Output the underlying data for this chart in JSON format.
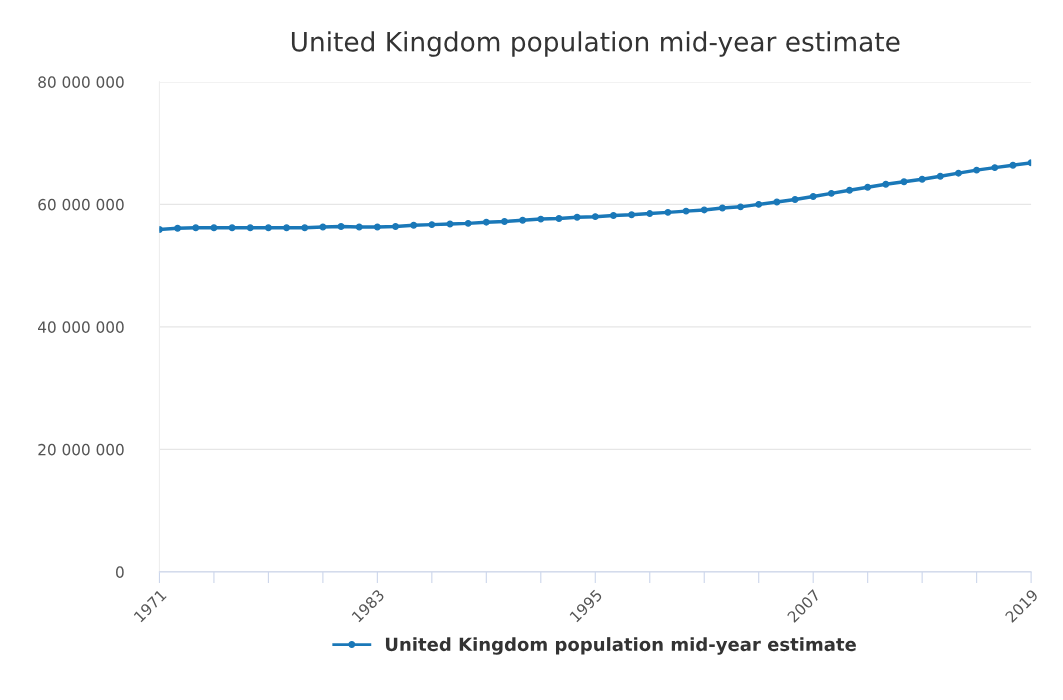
{
  "chart_data": {
    "type": "line",
    "title": "United Kingdom population mid-year estimate",
    "x": [
      1971,
      1972,
      1973,
      1974,
      1975,
      1976,
      1977,
      1978,
      1979,
      1980,
      1981,
      1982,
      1983,
      1984,
      1985,
      1986,
      1987,
      1988,
      1989,
      1990,
      1991,
      1992,
      1993,
      1994,
      1995,
      1996,
      1997,
      1998,
      1999,
      2000,
      2001,
      2002,
      2003,
      2004,
      2005,
      2006,
      2007,
      2008,
      2009,
      2010,
      2011,
      2012,
      2013,
      2014,
      2015,
      2016,
      2017,
      2018,
      2019
    ],
    "series": [
      {
        "name": "United Kingdom population mid-year estimate",
        "color": "#1a78b8",
        "values": [
          55900000,
          56100000,
          56200000,
          56200000,
          56200000,
          56200000,
          56200000,
          56200000,
          56200000,
          56300000,
          56400000,
          56300000,
          56300000,
          56400000,
          56600000,
          56700000,
          56800000,
          56900000,
          57100000,
          57200000,
          57400000,
          57600000,
          57700000,
          57900000,
          58000000,
          58200000,
          58300000,
          58500000,
          58700000,
          58900000,
          59100000,
          59400000,
          59600000,
          60000000,
          60400000,
          60800000,
          61300000,
          61800000,
          62300000,
          62800000,
          63300000,
          63700000,
          64100000,
          64600000,
          65100000,
          65600000,
          66000000,
          66400000,
          66800000
        ]
      }
    ],
    "xlim": [
      1971,
      2019
    ],
    "xticks": [
      1971,
      {
        "value": 1974,
        "label": null
      },
      {
        "value": 1977,
        "label": null
      },
      {
        "value": 1980,
        "label": null
      },
      1983,
      {
        "value": 1986,
        "label": null
      },
      {
        "value": 1989,
        "label": null
      },
      {
        "value": 1992,
        "label": null
      },
      1995,
      {
        "value": 1998,
        "label": null
      },
      {
        "value": 2001,
        "label": null
      },
      {
        "value": 2004,
        "label": null
      },
      2007,
      {
        "value": 2010,
        "label": null
      },
      {
        "value": 2013,
        "label": null
      },
      {
        "value": 2016,
        "label": null
      },
      2019
    ],
    "ylim": [
      0,
      80000000
    ],
    "yticks": [
      {
        "value": 0,
        "label": "0"
      },
      {
        "value": 20000000,
        "label": "20 000 000"
      },
      {
        "value": 40000000,
        "label": "40 000 000"
      },
      {
        "value": 60000000,
        "label": "60 000 000"
      },
      {
        "value": 80000000,
        "label": "80 000 000"
      }
    ],
    "grid": "y",
    "legend": "bottom",
    "marker": "circle",
    "line_style": "solid"
  }
}
